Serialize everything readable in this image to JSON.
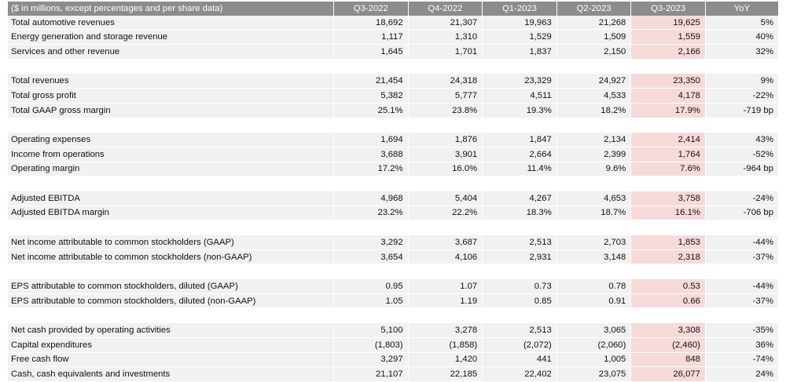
{
  "header": {
    "label": "($ in millions, except percentages and per share data)",
    "periods": [
      "Q3-2022",
      "Q4-2022",
      "Q1-2023",
      "Q2-2023",
      "Q3-2023"
    ],
    "yoy": "YoY"
  },
  "highlight_color": "#f6dada",
  "groups": [
    {
      "rows": [
        {
          "label": "Total automotive revenues",
          "values": [
            "18,692",
            "21,307",
            "19,963",
            "21,268",
            "19,625"
          ],
          "yoy": "5%"
        },
        {
          "label": "Energy generation and storage revenue",
          "values": [
            "1,117",
            "1,310",
            "1,529",
            "1,509",
            "1,559"
          ],
          "yoy": "40%"
        },
        {
          "label": "Services and other revenue",
          "values": [
            "1,645",
            "1,701",
            "1,837",
            "2,150",
            "2,166"
          ],
          "yoy": "32%"
        }
      ]
    },
    {
      "rows": [
        {
          "label": "Total revenues",
          "values": [
            "21,454",
            "24,318",
            "23,329",
            "24,927",
            "23,350"
          ],
          "yoy": "9%"
        },
        {
          "label": "Total gross profit",
          "values": [
            "5,382",
            "5,777",
            "4,511",
            "4,533",
            "4,178"
          ],
          "yoy": "-22%"
        },
        {
          "label": "Total GAAP gross margin",
          "values": [
            "25.1%",
            "23.8%",
            "19.3%",
            "18.2%",
            "17.9%"
          ],
          "yoy": "-719 bp"
        }
      ]
    },
    {
      "rows": [
        {
          "label": "Operating expenses",
          "values": [
            "1,694",
            "1,876",
            "1,847",
            "2,134",
            "2,414"
          ],
          "yoy": "43%"
        },
        {
          "label": "Income from operations",
          "values": [
            "3,688",
            "3,901",
            "2,664",
            "2,399",
            "1,764"
          ],
          "yoy": "-52%"
        },
        {
          "label": "Operating margin",
          "values": [
            "17.2%",
            "16.0%",
            "11.4%",
            "9.6%",
            "7.6%"
          ],
          "yoy": "-964 bp"
        }
      ]
    },
    {
      "rows": [
        {
          "label": "Adjusted EBITDA",
          "values": [
            "4,968",
            "5,404",
            "4,267",
            "4,653",
            "3,758"
          ],
          "yoy": "-24%"
        },
        {
          "label": "Adjusted EBITDA margin",
          "values": [
            "23.2%",
            "22.2%",
            "18.3%",
            "18.7%",
            "16.1%"
          ],
          "yoy": "-706 bp"
        }
      ]
    },
    {
      "rows": [
        {
          "label": "Net income attributable to common stockholders (GAAP)",
          "values": [
            "3,292",
            "3,687",
            "2,513",
            "2,703",
            "1,853"
          ],
          "yoy": "-44%"
        },
        {
          "label": "Net income attributable to common stockholders (non-GAAP)",
          "values": [
            "3,654",
            "4,106",
            "2,931",
            "3,148",
            "2,318"
          ],
          "yoy": "-37%"
        }
      ]
    },
    {
      "rows": [
        {
          "label": "EPS attributable to common stockholders, diluted (GAAP)",
          "values": [
            "0.95",
            "1.07",
            "0.73",
            "0.78",
            "0.53"
          ],
          "yoy": "-44%"
        },
        {
          "label": "EPS attributable to common stockholders, diluted (non-GAAP)",
          "values": [
            "1.05",
            "1.19",
            "0.85",
            "0.91",
            "0.66"
          ],
          "yoy": "-37%"
        }
      ]
    },
    {
      "rows": [
        {
          "label": "Net cash provided by operating activities",
          "values": [
            "5,100",
            "3,278",
            "2,513",
            "3,065",
            "3,308"
          ],
          "yoy": "-35%"
        },
        {
          "label": "Capital expenditures",
          "values": [
            "(1,803)",
            "(1,858)",
            "(2,072)",
            "(2,060)",
            "(2,460)"
          ],
          "yoy": "36%"
        },
        {
          "label": "Free cash flow",
          "values": [
            "3,297",
            "1,420",
            "441",
            "1,005",
            "848"
          ],
          "yoy": "-74%"
        },
        {
          "label": "Cash, cash equivalents and investments",
          "values": [
            "21,107",
            "22,185",
            "22,402",
            "23,075",
            "26,077"
          ],
          "yoy": "24%"
        }
      ]
    }
  ]
}
